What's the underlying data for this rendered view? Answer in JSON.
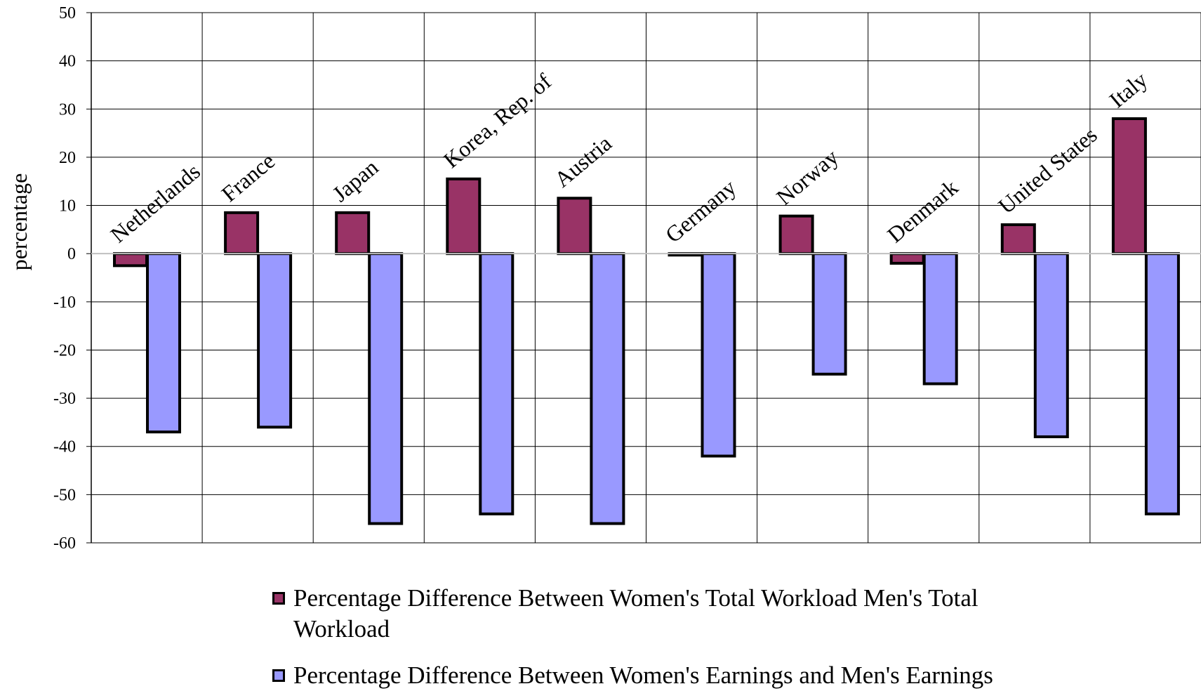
{
  "chart_data": {
    "type": "bar",
    "title": "",
    "xlabel": "",
    "ylabel": "percentage",
    "ylim": [
      -60,
      50
    ],
    "ytick_step": 10,
    "grid": true,
    "legend_position": "bottom",
    "categories": [
      "Netherlands",
      "France",
      "Japan",
      "Korea, Rep. of",
      "Austria",
      "Germany",
      "Norway",
      "Denmark",
      "United States",
      "Italy"
    ],
    "series": [
      {
        "name": "Percentage Difference Between Women's Total Workload Men's Total Workload",
        "color": "#993366",
        "values": [
          -2.5,
          8.5,
          8.5,
          15.5,
          11.5,
          -0.3,
          7.8,
          -2,
          6,
          28
        ]
      },
      {
        "name": "Percentage Difference Between Women's Earnings and Men's Earnings",
        "color": "#9999ff",
        "values": [
          -37,
          -36,
          -56,
          -54,
          -56,
          -42,
          -25,
          -27,
          -38,
          -54
        ]
      }
    ]
  }
}
